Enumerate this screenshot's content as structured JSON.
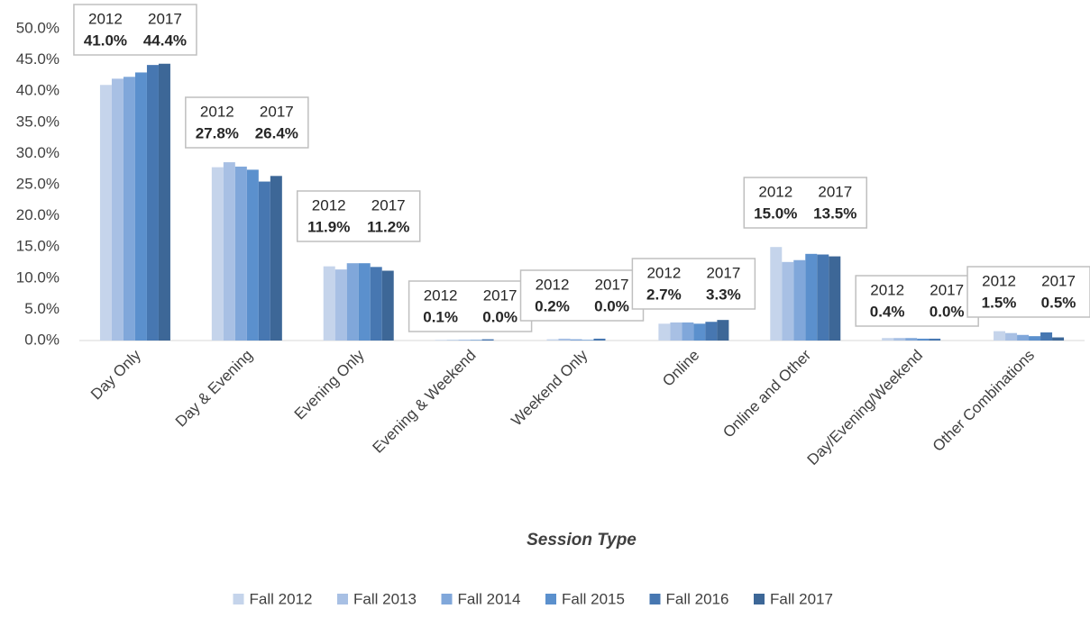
{
  "chart_data": {
    "type": "bar",
    "x_label": "Session Type",
    "categories": [
      "Day Only",
      "Day & Evening",
      "Evening Only",
      "Evening & Weekend",
      "Weekend Only",
      "Online",
      "Online and Other",
      "Day/Evening/Weekend",
      "Other Combinations"
    ],
    "annotation_headers": [
      "2012",
      "2017"
    ],
    "series": [
      {
        "name": "Fall 2012",
        "color": "#c5d4eb",
        "values": [
          41.0,
          27.8,
          11.9,
          0.1,
          0.2,
          2.7,
          15.0,
          0.4,
          1.5
        ],
        "value_labels": [
          "41.0%",
          "27.8%",
          "11.9%",
          "0.1%",
          "0.2%",
          "2.7%",
          "15.0%",
          "0.4%",
          "1.5%"
        ]
      },
      {
        "name": "Fall 2013",
        "color": "#a8c0e4",
        "values": [
          42.0,
          28.6,
          11.4,
          0.1,
          0.3,
          2.9,
          12.6,
          0.4,
          1.2
        ]
      },
      {
        "name": "Fall 2014",
        "color": "#80a7da",
        "values": [
          42.3,
          27.9,
          12.4,
          0.1,
          0.2,
          2.9,
          12.9,
          0.4,
          0.9
        ]
      },
      {
        "name": "Fall 2015",
        "color": "#5b90cd",
        "values": [
          43.0,
          27.4,
          12.4,
          0.1,
          0.1,
          2.7,
          13.9,
          0.3,
          0.7
        ]
      },
      {
        "name": "Fall 2016",
        "color": "#4777b1",
        "values": [
          44.2,
          25.5,
          11.8,
          0.2,
          0.3,
          3.0,
          13.8,
          0.3,
          1.3
        ]
      },
      {
        "name": "Fall 2017",
        "color": "#3d6797",
        "values": [
          44.4,
          26.4,
          11.2,
          0.0,
          0.0,
          3.3,
          13.5,
          0.0,
          0.5
        ],
        "value_labels": [
          "44.4%",
          "26.4%",
          "11.2%",
          "0.0%",
          "0.0%",
          "3.3%",
          "13.5%",
          "0.0%",
          "0.5%"
        ]
      }
    ],
    "ylim": [
      0,
      50
    ],
    "yticks": [
      {
        "value": 0,
        "label": "0.0%"
      },
      {
        "value": 5,
        "label": "5.0%"
      },
      {
        "value": 10,
        "label": "10.0%"
      },
      {
        "value": 15,
        "label": "15.0%"
      },
      {
        "value": 20,
        "label": "20.0%"
      },
      {
        "value": 25,
        "label": "25.0%"
      },
      {
        "value": 30,
        "label": "30.0%"
      },
      {
        "value": 35,
        "label": "35.0%"
      },
      {
        "value": 40,
        "label": "40.0%"
      },
      {
        "value": 45,
        "label": "45.0%"
      },
      {
        "value": 50,
        "label": "50.0%"
      }
    ],
    "grid": false,
    "legend": "bottom"
  }
}
